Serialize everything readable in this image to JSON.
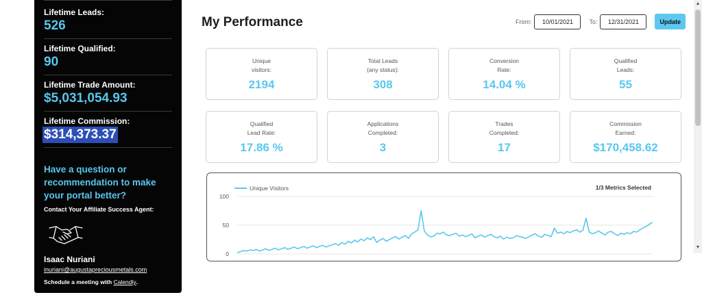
{
  "sidebar": {
    "stats": [
      {
        "label": "Lifetime Leads:",
        "value": "526"
      },
      {
        "label": "Lifetime Qualified:",
        "value": "90"
      },
      {
        "label": "Lifetime Trade Amount:",
        "value": "$5,031,054.93"
      },
      {
        "label": "Lifetime Commission:",
        "value": "$314,373.37"
      }
    ],
    "question": "Have a question or recommendation to make your portal better?",
    "contact_label": "Contact Your Affiliate Success Agent:",
    "agent_icon": "handshake-icon",
    "agent_name": "Isaac Nuriani",
    "agent_email": "inuriani@augustapreciousmetals.com",
    "meeting_prefix": "Schedule a meeting with ",
    "meeting_link": "Calendly",
    "meeting_suffix": "."
  },
  "header": {
    "title": "My Performance",
    "from_label": "From:",
    "from_value": "10/01/2021",
    "to_label": "To:",
    "to_value": "12/31/2021",
    "update_label": "Update"
  },
  "cards": [
    {
      "label": "Unique\nvisitors:",
      "value": "2194"
    },
    {
      "label": "Total Leads\n(any status):",
      "value": "308"
    },
    {
      "label": "Conversion\nRate:",
      "value": "14.04 %"
    },
    {
      "label": "Qualified\nLeads:",
      "value": "55"
    },
    {
      "label": "Qualified\nLead Rate:",
      "value": "17.86 %"
    },
    {
      "label": "Applications\nCompleted:",
      "value": "3"
    },
    {
      "label": "Trades\nCompleted:",
      "value": "17"
    },
    {
      "label": "Commission\nEarned:",
      "value": "$170,458.62"
    }
  ],
  "chart_data": {
    "type": "line",
    "title": "",
    "legend": "Unique Visitors",
    "legend_position": "top-left",
    "metrics_selected": "1/3 Metrics Selected",
    "y_ticks": [
      "100",
      "50",
      "0"
    ],
    "ylim": [
      0,
      100
    ],
    "grid": true,
    "series": [
      {
        "name": "Unique Visitors",
        "color": "#59c7ee",
        "values": [
          2,
          4,
          6,
          5,
          7,
          6,
          8,
          5,
          7,
          9,
          6,
          8,
          10,
          7,
          9,
          11,
          8,
          10,
          12,
          9,
          11,
          13,
          10,
          12,
          14,
          11,
          13,
          15,
          12,
          14,
          16,
          18,
          15,
          20,
          17,
          22,
          19,
          24,
          21,
          26,
          23,
          28,
          25,
          30,
          20,
          24,
          27,
          22,
          25,
          28,
          30,
          26,
          29,
          32,
          27,
          35,
          38,
          42,
          75,
          40,
          33,
          30,
          31,
          36,
          35,
          38,
          33,
          32,
          34,
          36,
          31,
          33,
          30,
          32,
          35,
          28,
          31,
          33,
          29,
          32,
          34,
          30,
          28,
          31,
          26,
          29,
          27,
          28,
          32,
          30,
          29,
          27,
          30,
          33,
          35,
          31,
          29,
          34,
          32,
          30,
          45,
          36,
          38,
          35,
          39,
          37,
          40,
          42,
          38,
          41,
          62,
          38,
          35,
          37,
          40,
          36,
          33,
          38,
          39,
          35,
          32,
          36,
          34,
          37,
          35,
          39,
          38,
          42,
          45,
          48,
          52,
          55
        ]
      }
    ]
  }
}
